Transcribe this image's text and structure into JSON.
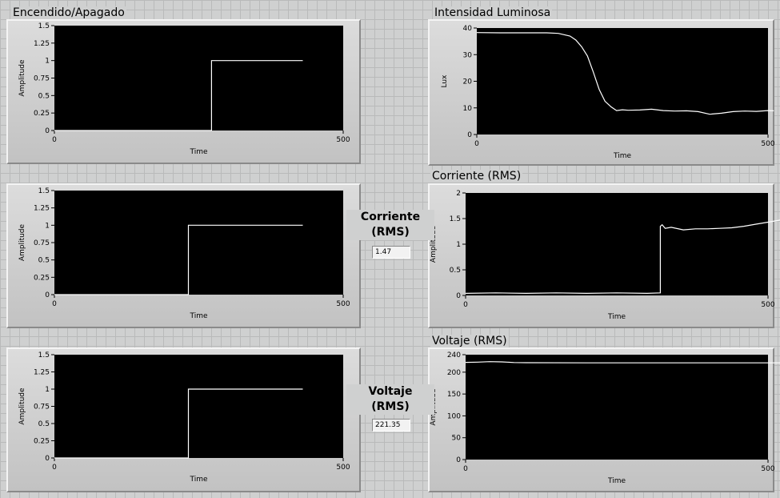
{
  "window": {
    "background": "#cfd0d0",
    "plot_bg": "#000000",
    "trace_color": "#ffffff"
  },
  "indicators": {
    "current": {
      "label_line1": "Corriente",
      "label_line2": "(RMS)",
      "value": "1.47"
    },
    "voltage": {
      "label_line1": "Voltaje",
      "label_line2": "(RMS)",
      "value": "221.35"
    }
  },
  "chart_data": [
    {
      "id": "onoff_1",
      "type": "line",
      "title": "Encendido/Apagado",
      "xlabel": "Time",
      "ylabel": "Amplitude",
      "xlim": [
        0,
        500
      ],
      "xticks": [
        "0",
        "500"
      ],
      "ylim": [
        0,
        1.5
      ],
      "yticks": [
        "0",
        "0.25",
        "0.5",
        "0.75",
        "1",
        "1.25",
        "1.5"
      ],
      "series": [
        {
          "x": [
            0,
            272,
            272,
            430
          ],
          "y": [
            0,
            0,
            1,
            1
          ]
        }
      ]
    },
    {
      "id": "onoff_2",
      "type": "line",
      "title": "",
      "xlabel": "Time",
      "ylabel": "Amplitude",
      "xlim": [
        0,
        500
      ],
      "xticks": [
        "0",
        "500"
      ],
      "ylim": [
        0,
        1.5
      ],
      "yticks": [
        "0",
        "0.25",
        "0.5",
        "0.75",
        "1",
        "1.25",
        "1.5"
      ],
      "series": [
        {
          "x": [
            0,
            232,
            232,
            430
          ],
          "y": [
            0,
            0,
            1,
            1
          ]
        }
      ]
    },
    {
      "id": "onoff_3",
      "type": "line",
      "title": "",
      "xlabel": "Time",
      "ylabel": "Amplitude",
      "xlim": [
        0,
        500
      ],
      "xticks": [
        "0",
        "500"
      ],
      "ylim": [
        0,
        1.5
      ],
      "yticks": [
        "0",
        "0.25",
        "0.5",
        "0.75",
        "1",
        "1.25",
        "1.5"
      ],
      "series": [
        {
          "x": [
            0,
            232,
            232,
            430
          ],
          "y": [
            0,
            0,
            1,
            1
          ]
        }
      ]
    },
    {
      "id": "lux",
      "type": "line",
      "title": "Intensidad Luminosa",
      "xlabel": "Time",
      "ylabel": "Lux",
      "xlim": [
        0,
        500
      ],
      "xticks": [
        "0",
        "500"
      ],
      "ylim": [
        0,
        40
      ],
      "yticks": [
        "0",
        "10",
        "20",
        "30",
        "40"
      ],
      "series": [
        {
          "x": [
            0,
            40,
            80,
            120,
            140,
            160,
            170,
            180,
            190,
            200,
            210,
            220,
            230,
            240,
            250,
            260,
            280,
            300,
            320,
            340,
            360,
            380,
            400,
            420,
            440,
            460,
            480,
            500,
            510
          ],
          "y": [
            38.3,
            38.2,
            38.2,
            38.2,
            38.0,
            37.0,
            35.5,
            33.0,
            29.5,
            23.5,
            17.0,
            12.5,
            10.5,
            9.0,
            9.3,
            9.1,
            9.2,
            9.5,
            9.0,
            8.8,
            8.9,
            8.6,
            7.6,
            8.0,
            8.6,
            8.8,
            8.7,
            9.0,
            8.9
          ]
        }
      ]
    },
    {
      "id": "current",
      "type": "line",
      "title": "Corriente (RMS)",
      "xlabel": "Time",
      "ylabel": "Amplitude",
      "xlim": [
        0,
        500
      ],
      "xticks": [
        "0",
        "500"
      ],
      "ylim": [
        0,
        2
      ],
      "yticks": [
        "0",
        "0.5",
        "1",
        "1.5",
        "2"
      ],
      "series": [
        {
          "x": [
            0,
            50,
            100,
            150,
            200,
            250,
            300,
            322,
            322,
            325,
            330,
            340,
            360,
            380,
            400,
            420,
            440,
            460,
            480,
            500,
            520
          ],
          "y": [
            0.04,
            0.05,
            0.04,
            0.05,
            0.04,
            0.05,
            0.04,
            0.05,
            1.35,
            1.38,
            1.31,
            1.33,
            1.28,
            1.3,
            1.3,
            1.31,
            1.32,
            1.35,
            1.39,
            1.43,
            1.47
          ]
        }
      ]
    },
    {
      "id": "voltage",
      "type": "line",
      "title": "Voltaje (RMS)",
      "xlabel": "Time",
      "ylabel": "Amplitude",
      "xlim": [
        0,
        500
      ],
      "xticks": [
        "0",
        "500"
      ],
      "ylim": [
        0,
        240
      ],
      "yticks": [
        "0",
        "50",
        "100",
        "150",
        "200",
        "240"
      ],
      "series": [
        {
          "x": [
            0,
            20,
            40,
            60,
            80,
            100,
            200,
            300,
            400,
            500,
            520
          ],
          "y": [
            222.5,
            223,
            224,
            223.5,
            222,
            221.6,
            221.4,
            221.4,
            221.4,
            221.4,
            221.35
          ]
        }
      ]
    }
  ]
}
